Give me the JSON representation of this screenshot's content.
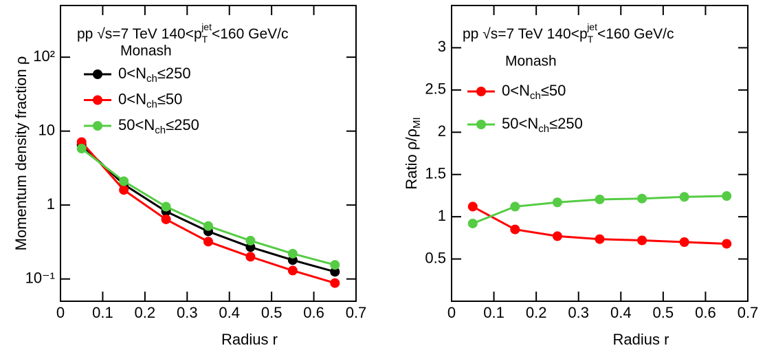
{
  "chart_data": [
    {
      "type": "line",
      "annotation": "pp √s=7 TeV 140<pTjet<160 GeV/c",
      "legend_title": "Monash",
      "x_label": "Radius r",
      "y_label": "Momentum density fraction ρ",
      "x": [
        0.05,
        0.15,
        0.25,
        0.35,
        0.45,
        0.55,
        0.65
      ],
      "xlim": [
        0,
        0.7
      ],
      "xticks": [
        0,
        0.1,
        0.2,
        0.3,
        0.4,
        0.5,
        0.6,
        0.7
      ],
      "ylim": [
        0.05,
        500
      ],
      "ylog": true,
      "yticks": [
        {
          "value": 0.1,
          "label": "10⁻¹"
        },
        1,
        10,
        {
          "value": 100,
          "label": "10²"
        }
      ],
      "series": [
        {
          "name": "0<Nch≤250",
          "color": "#000000",
          "values": [
            6.5,
            1.9,
            0.82,
            0.44,
            0.27,
            0.18,
            0.125
          ]
        },
        {
          "name": "0<Nch≤50",
          "color": "#ff0000",
          "values": [
            7.1,
            1.6,
            0.64,
            0.32,
            0.2,
            0.13,
            0.088
          ]
        },
        {
          "name": "50<Nch≤250",
          "color": "#55cc44",
          "values": [
            5.8,
            2.1,
            0.95,
            0.52,
            0.33,
            0.22,
            0.155
          ]
        }
      ]
    },
    {
      "type": "line",
      "annotation": "pp √s=7 TeV  140<pTjet<160 GeV/c",
      "legend_title": "Monash",
      "x_label": "Radius r",
      "y_label": "Ratio ρ/ρMI",
      "x": [
        0.05,
        0.15,
        0.25,
        0.35,
        0.45,
        0.55,
        0.65
      ],
      "xlim": [
        0,
        0.7
      ],
      "xticks": [
        0,
        0.1,
        0.2,
        0.3,
        0.4,
        0.5,
        0.6,
        0.7
      ],
      "ylim": [
        0,
        3.5
      ],
      "ylog": false,
      "yticks": [
        0.5,
        1,
        1.5,
        2,
        2.5,
        3
      ],
      "series": [
        {
          "name": "0<Nch≤50",
          "color": "#ff0000",
          "values": [
            1.12,
            0.85,
            0.77,
            0.735,
            0.72,
            0.7,
            0.68
          ]
        },
        {
          "name": "50<Nch≤250",
          "color": "#55cc44",
          "values": [
            0.92,
            1.12,
            1.17,
            1.205,
            1.215,
            1.235,
            1.245
          ]
        }
      ]
    }
  ]
}
